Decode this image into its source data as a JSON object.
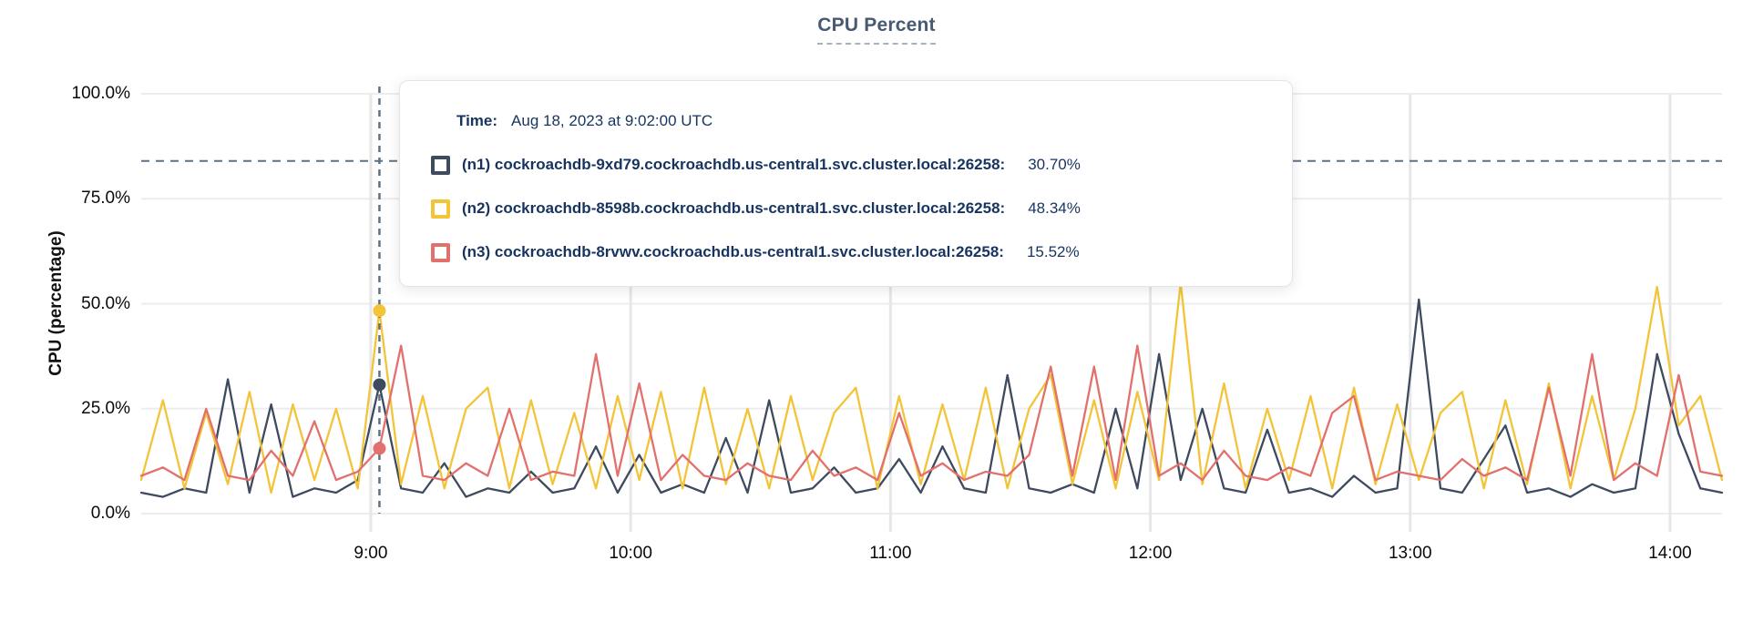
{
  "title": "CPU Percent",
  "tooltip": {
    "time_label": "Time:",
    "time_value": "Aug 18, 2023 at 9:02:00 UTC",
    "rows": [
      {
        "value": "30.70%"
      },
      {
        "value": "48.34%"
      },
      {
        "value": "15.52%"
      }
    ]
  },
  "chart_data": {
    "type": "line",
    "title": "CPU Percent",
    "xlabel": "",
    "ylabel": "CPU (percentage)",
    "ylim": [
      0,
      100
    ],
    "grid": true,
    "legend_position": "tooltip",
    "y_ticks": [
      {
        "value": 0,
        "label": "0.0%"
      },
      {
        "value": 25,
        "label": "25.0%"
      },
      {
        "value": 50,
        "label": "50.0%"
      },
      {
        "value": 75,
        "label": "75.0%"
      },
      {
        "value": 100,
        "label": "100.0%"
      }
    ],
    "x_ticks": [
      {
        "minute": 53,
        "label": "9:00"
      },
      {
        "minute": 113,
        "label": "10:00"
      },
      {
        "minute": 173,
        "label": "11:00"
      },
      {
        "minute": 233,
        "label": "12:00"
      },
      {
        "minute": 293,
        "label": "13:00"
      },
      {
        "minute": 353,
        "label": "14:00"
      }
    ],
    "x_range_minutes": [
      0,
      365
    ],
    "sample_step_minutes": 5,
    "threshold_pct": 84,
    "crosshair": {
      "minute": 55,
      "time": "Aug 18, 2023 at 9:02:00 UTC",
      "values": [
        30.7,
        48.34,
        15.52
      ]
    },
    "colors": {
      "grid_h": "#ededed",
      "grid_v": "#e7e7e7",
      "dashed": "#5d7285",
      "tooltip_text": "#16345f",
      "title": "#485a73"
    },
    "series": [
      {
        "name": "(n1) cockroachdb-9xd79.cockroachdb.us-central1.svc.cluster.local:26258:",
        "color": "#3e4a5e",
        "values": [
          5,
          4,
          6,
          5,
          32,
          5,
          26,
          4,
          6,
          5,
          8,
          30.7,
          6,
          5,
          12,
          4,
          6,
          5,
          10,
          5,
          6,
          16,
          5,
          14,
          5,
          7,
          5,
          18,
          5,
          27,
          5,
          6,
          11,
          5,
          6,
          13,
          5,
          16,
          6,
          5,
          33,
          6,
          5,
          7,
          5,
          25,
          6,
          38,
          8,
          25,
          6,
          5,
          20,
          5,
          6,
          4,
          9,
          5,
          6,
          51,
          6,
          5,
          13,
          21,
          5,
          6,
          4,
          7,
          5,
          6,
          38,
          19,
          6,
          5
        ]
      },
      {
        "name": "(n2) cockroachdb-8598b.cockroachdb.us-central1.svc.cluster.local:26258:",
        "color": "#f3c438",
        "values": [
          8,
          27,
          6,
          24,
          7,
          29,
          5,
          26,
          8,
          25,
          6,
          48.34,
          7,
          28,
          6,
          25,
          30,
          6,
          27,
          7,
          24,
          6,
          28,
          8,
          29,
          6,
          30,
          7,
          25,
          6,
          28,
          8,
          24,
          30,
          6,
          28,
          7,
          26,
          8,
          30,
          6,
          25,
          33,
          7,
          27,
          6,
          29,
          8,
          55,
          7,
          31,
          6,
          25,
          8,
          28,
          6,
          30,
          7,
          26,
          8,
          24,
          29,
          6,
          27,
          7,
          31,
          6,
          28,
          8,
          25,
          54,
          21,
          28,
          8
        ]
      },
      {
        "name": "(n3) cockroachdb-8rvwv.cockroachdb.us-central1.svc.cluster.local:26258:",
        "color": "#e2706c",
        "values": [
          9,
          11,
          8,
          25,
          9,
          8,
          15,
          9,
          22,
          8,
          10,
          15.52,
          40,
          9,
          8,
          12,
          9,
          25,
          8,
          10,
          9,
          38,
          9,
          31,
          8,
          14,
          9,
          8,
          12,
          9,
          8,
          15,
          9,
          11,
          8,
          24,
          9,
          12,
          8,
          10,
          9,
          14,
          35,
          9,
          35,
          8,
          40,
          9,
          12,
          8,
          15,
          9,
          8,
          11,
          9,
          24,
          28,
          8,
          10,
          9,
          8,
          13,
          9,
          11,
          8,
          30,
          9,
          38,
          8,
          12,
          9,
          33,
          10,
          9
        ]
      }
    ]
  }
}
